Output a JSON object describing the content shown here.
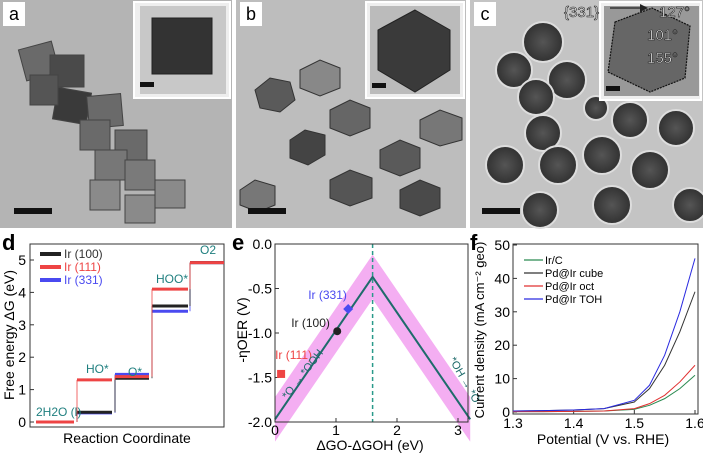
{
  "panels": {
    "a": {
      "label": "a"
    },
    "b": {
      "label": "b"
    },
    "c": {
      "label": "c",
      "annotations": {
        "facet": "{331}",
        "angle1": "127°",
        "angle2": "101°",
        "angle3": "155°"
      }
    },
    "d": {
      "label": "d"
    },
    "e": {
      "label": "e"
    },
    "f": {
      "label": "f"
    }
  },
  "chart_data": [
    {
      "panel": "d",
      "type": "line",
      "xlabel": "Reaction Coordinate",
      "ylabel": "Free energy ΔG (eV)",
      "ylim": [
        0,
        5.3
      ],
      "yticks": [
        "0",
        "1",
        "2",
        "3",
        "4",
        "5"
      ],
      "steps": [
        "2H2O (l)",
        "HO*",
        "O*",
        "HOO*",
        "O2"
      ],
      "legend_position": "top-left",
      "series": [
        {
          "name": "Ir (100)",
          "color": "#222222",
          "values": [
            0,
            0.3,
            1.35,
            3.58,
            4.92
          ]
        },
        {
          "name": "Ir (111)",
          "color": "#ee4444",
          "values": [
            0,
            1.3,
            1.4,
            4.1,
            4.92
          ]
        },
        {
          "name": "Ir (331)",
          "color": "#4a4af0",
          "values": [
            0,
            0.28,
            1.47,
            3.42,
            4.92
          ]
        }
      ]
    },
    {
      "panel": "e",
      "type": "scatter",
      "xlabel": "ΔGO-ΔGOH (eV)",
      "ylabel": "-ηOER (V)",
      "xlim": [
        0,
        3.2
      ],
      "ylim": [
        -2.0,
        0.0
      ],
      "xticks": [
        "0",
        "1",
        "2",
        "3"
      ],
      "yticks": [
        "0.0",
        "-0.5",
        "-1.0",
        "-1.5",
        "-2.0"
      ],
      "volcano": {
        "apex": [
          1.6,
          -0.37
        ],
        "left_end": [
          0,
          -1.97
        ],
        "right_end": [
          3.2,
          -1.97
        ],
        "line_color": "#1f6b6b",
        "band_color": "#f2a0f0"
      },
      "left_branch_label": "*O → *OOH",
      "right_branch_label": "*OH → *O",
      "vertical_line_x": 1.6,
      "points": [
        {
          "name": "Ir (331)",
          "x": 1.2,
          "y": -0.73,
          "color": "#4a4af0",
          "marker": "diamond"
        },
        {
          "name": "Ir (100)",
          "x": 1.02,
          "y": -0.98,
          "color": "#222222",
          "marker": "circle"
        },
        {
          "name": "Ir (111)",
          "x": 0.1,
          "y": -1.46,
          "color": "#ee4444",
          "marker": "square"
        }
      ]
    },
    {
      "panel": "f",
      "type": "line",
      "xlabel": "Potential (V vs. RHE)",
      "ylabel": "Current density (mA cm⁻² geo)",
      "xlim": [
        1.3,
        1.61
      ],
      "ylim": [
        0,
        50
      ],
      "xticks": [
        "1.3",
        "1.4",
        "1.5",
        "1.6"
      ],
      "yticks": [
        "0",
        "10",
        "20",
        "30",
        "40",
        "50"
      ],
      "legend_position": "top-left",
      "x": [
        1.3,
        1.35,
        1.4,
        1.45,
        1.5,
        1.525,
        1.55,
        1.575,
        1.6
      ],
      "series": [
        {
          "name": "Ir/C",
          "color": "#2a8a50",
          "values": [
            0.1,
            0.1,
            0.2,
            0.3,
            0.8,
            2.0,
            4.0,
            7.0,
            11.0
          ]
        },
        {
          "name": "Pd@Ir cube",
          "color": "#333333",
          "values": [
            0.3,
            0.4,
            0.6,
            1.0,
            3.0,
            7.0,
            14.0,
            24.0,
            36.0
          ]
        },
        {
          "name": "Pd@Ir oct",
          "color": "#e03030",
          "values": [
            0.1,
            0.1,
            0.2,
            0.3,
            1.0,
            2.5,
            5.0,
            9.0,
            14.0
          ]
        },
        {
          "name": "Pd@Ir TOH",
          "color": "#2a2ae0",
          "values": [
            0.3,
            0.4,
            0.6,
            1.0,
            3.5,
            8.0,
            17.0,
            30.0,
            46.0
          ]
        }
      ]
    }
  ]
}
